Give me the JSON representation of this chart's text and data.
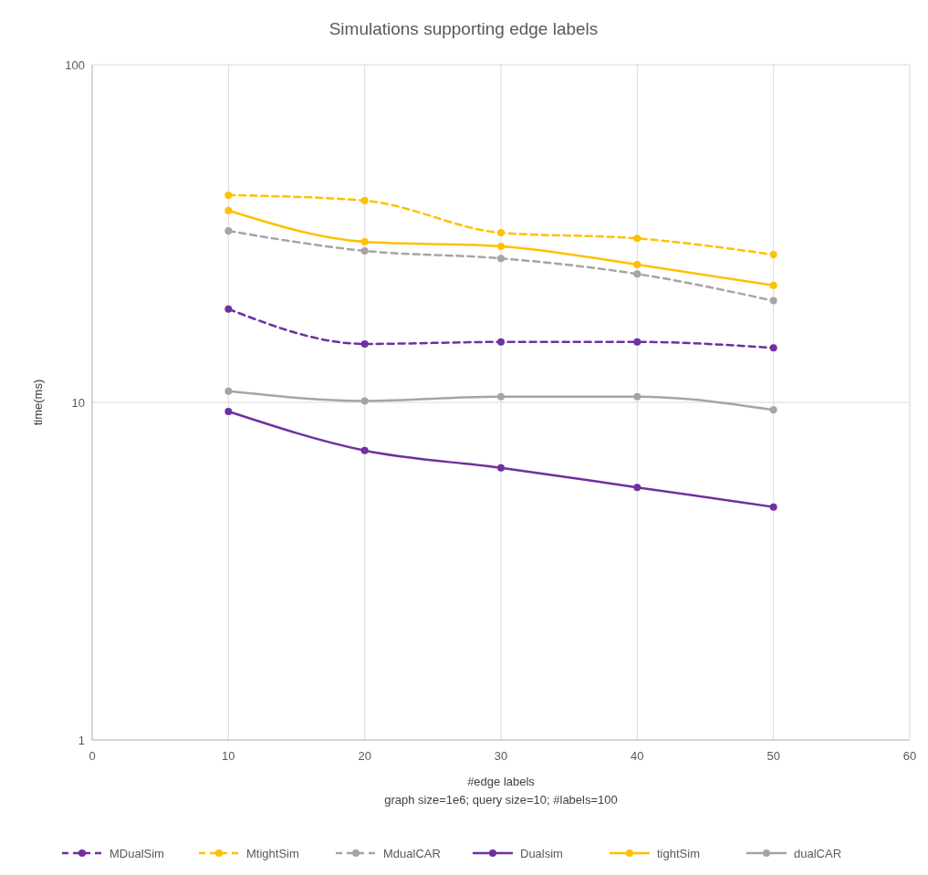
{
  "chart_data": {
    "type": "line",
    "title": "Simulations supporting edge labels",
    "xlabel": "#edge  labels",
    "ylabel": "time(ms)",
    "annotations": [
      "graph size=1e6; query size=10; #labels=100"
    ],
    "x": [
      10,
      20,
      30,
      40,
      50
    ],
    "xlim": [
      0,
      60
    ],
    "xticks": [
      0,
      10,
      20,
      30,
      40,
      50,
      60
    ],
    "ylim": [
      1,
      100
    ],
    "yticks": [
      1,
      10,
      100
    ],
    "log": "y",
    "grid": true,
    "legend": "bottom",
    "marker": "circle",
    "series": [
      {
        "name": "MDualSim",
        "color": "#7030a0",
        "line_style": "dashed",
        "values": [
          18.9,
          14.9,
          15.1,
          15.1,
          14.5
        ]
      },
      {
        "name": "MtightSim",
        "color": "#ffc000",
        "line_style": "dashed",
        "values": [
          41.1,
          39.6,
          31.8,
          30.6,
          27.4
        ]
      },
      {
        "name": "MdualCAR",
        "color": "#a5a5a5",
        "line_style": "dashed",
        "values": [
          32.2,
          28.1,
          26.7,
          24.0,
          20.0
        ]
      },
      {
        "name": "Dualsim",
        "color": "#7030a0",
        "line_style": "solid",
        "values": [
          9.4,
          7.2,
          6.4,
          5.6,
          4.9
        ]
      },
      {
        "name": "tightSim",
        "color": "#ffc000",
        "line_style": "solid",
        "values": [
          37.0,
          29.9,
          29.0,
          25.6,
          22.2
        ]
      },
      {
        "name": "dualCAR",
        "color": "#a5a5a5",
        "line_style": "solid",
        "values": [
          10.8,
          10.1,
          10.4,
          10.4,
          9.5
        ]
      }
    ]
  }
}
